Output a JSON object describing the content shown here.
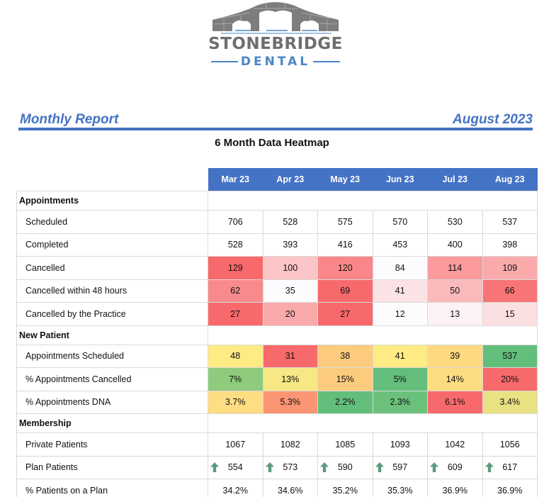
{
  "logo": {
    "brand_name": "STONEBRIDGE",
    "brand_sub": "DENTAL",
    "icon": "bridge-teeth-logo"
  },
  "report": {
    "title": "Monthly Report",
    "date": "August 2023",
    "heatmap_title": "6 Month Data Heatmap"
  },
  "months": [
    "Mar 23",
    "Apr 23",
    "May 23",
    "Jun 23",
    "Jul 23",
    "Aug 23"
  ],
  "sections": [
    {
      "name": "Appointments",
      "rows": [
        {
          "label": "Scheduled",
          "values": [
            "706",
            "528",
            "575",
            "570",
            "530",
            "537"
          ],
          "colors": [
            "#ffffff",
            "#ffffff",
            "#ffffff",
            "#ffffff",
            "#ffffff",
            "#ffffff"
          ]
        },
        {
          "label": "Completed",
          "values": [
            "528",
            "393",
            "416",
            "453",
            "400",
            "398"
          ],
          "colors": [
            "#ffffff",
            "#ffffff",
            "#ffffff",
            "#ffffff",
            "#ffffff",
            "#ffffff"
          ]
        },
        {
          "label": "Cancelled",
          "values": [
            "129",
            "100",
            "120",
            "84",
            "114",
            "109"
          ],
          "colors": [
            "#f8696b",
            "#fbc4c6",
            "#f98789",
            "#fcfcff",
            "#fa9a9c",
            "#fbaaac"
          ]
        },
        {
          "label": "Cancelled within 48 hours",
          "values": [
            "62",
            "35",
            "69",
            "41",
            "50",
            "66"
          ],
          "colors": [
            "#f98a8c",
            "#fcfcff",
            "#f8696b",
            "#fbe2e4",
            "#fab9bb",
            "#f87476"
          ]
        },
        {
          "label": "Cancelled by the Practice",
          "values": [
            "27",
            "20",
            "27",
            "12",
            "13",
            "15"
          ],
          "colors": [
            "#f8696b",
            "#fbaaac",
            "#f8696b",
            "#fcfcff",
            "#fcf2f4",
            "#fbdfe1"
          ]
        }
      ]
    },
    {
      "name": "New Patient",
      "rows": [
        {
          "label": "Appointments Scheduled",
          "values": [
            "48",
            "31",
            "38",
            "41",
            "39",
            "537"
          ],
          "colors": [
            "#ffeb84",
            "#f8696b",
            "#fdcb7e",
            "#ffeb84",
            "#fed980",
            "#63be7b"
          ]
        },
        {
          "label": "% Appointments Cancelled",
          "values": [
            "7%",
            "13%",
            "15%",
            "5%",
            "14%",
            "20%"
          ],
          "colors": [
            "#8fcb7c",
            "#f6e884",
            "#fdcb7e",
            "#63be7b",
            "#fedc81",
            "#f8696b"
          ]
        },
        {
          "label": "% Appointments DNA",
          "values": [
            "3.7%",
            "5.3%",
            "2.2%",
            "2.3%",
            "6.1%",
            "3.4%"
          ],
          "colors": [
            "#ffdd82",
            "#fb9574",
            "#63be7b",
            "#6bc17c",
            "#f8696b",
            "#e8e282"
          ]
        }
      ]
    },
    {
      "name": "Membership",
      "rows": [
        {
          "label": "Private Patients",
          "values": [
            "1067",
            "1082",
            "1085",
            "1093",
            "1042",
            "1056"
          ],
          "colors": [
            "#ffffff",
            "#ffffff",
            "#ffffff",
            "#ffffff",
            "#ffffff",
            "#ffffff"
          ]
        },
        {
          "label": "Plan Patients",
          "values": [
            "554",
            "573",
            "590",
            "597",
            "609",
            "617"
          ],
          "colors": [
            "#ffffff",
            "#ffffff",
            "#ffffff",
            "#ffffff",
            "#ffffff",
            "#ffffff"
          ],
          "icon": "up-arrow-icon",
          "icon_color": "#5b9b7e"
        },
        {
          "label": "% Patients on a Plan",
          "values": [
            "34.2%",
            "34.6%",
            "35.2%",
            "35.3%",
            "36.9%",
            "36.9%"
          ],
          "colors": [
            "#ffffff",
            "#ffffff",
            "#ffffff",
            "#ffffff",
            "#ffffff",
            "#ffffff"
          ]
        }
      ]
    }
  ],
  "colors": {
    "accent": "#4472c4",
    "logo_blue": "#4a86c5",
    "logo_gray": "#6e6e6e",
    "arrow_green": "#5b9b7e"
  }
}
